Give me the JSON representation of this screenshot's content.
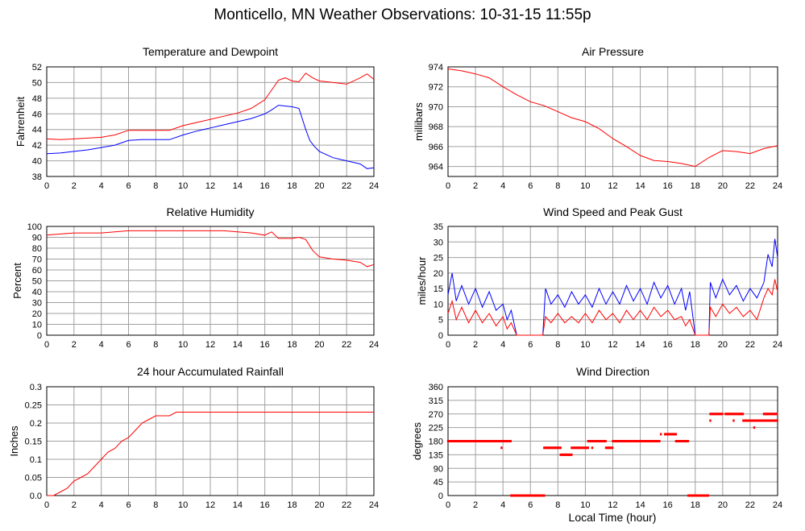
{
  "page": {
    "title": "Monticello, MN Weather Observations: 10-31-15 11:55p",
    "bottom_xlabel": "Local Time (hour)"
  },
  "chart_data": [
    {
      "type": "line",
      "title": "Temperature and Dewpoint",
      "ylabel": "Fahrenheit",
      "xlabel": "",
      "xlim": [
        0,
        24
      ],
      "ylim": [
        38,
        52
      ],
      "yticks": [
        38,
        40,
        42,
        44,
        46,
        48,
        50,
        52
      ],
      "xticks": [
        0,
        2,
        4,
        6,
        8,
        10,
        12,
        14,
        16,
        18,
        20,
        22,
        24
      ],
      "grid": true,
      "series": [
        {
          "color": "#ff0000",
          "x": [
            0,
            1,
            2,
            3,
            4,
            5,
            6,
            7,
            8,
            9,
            10,
            11,
            12,
            13,
            14,
            15,
            16,
            17,
            17.5,
            18,
            18.5,
            19,
            19.5,
            20,
            21,
            22,
            23,
            23.5,
            24
          ],
          "values": [
            42.8,
            42.7,
            42.8,
            42.9,
            43.0,
            43.3,
            43.9,
            43.9,
            43.9,
            43.9,
            44.5,
            44.9,
            45.3,
            45.7,
            46.1,
            46.7,
            47.8,
            50.3,
            50.6,
            50.2,
            50.1,
            51.2,
            50.6,
            50.2,
            50.0,
            49.8,
            50.6,
            51.1,
            50.4
          ]
        },
        {
          "color": "#0000ff",
          "x": [
            0,
            1,
            2,
            3,
            4,
            5,
            6,
            7,
            8,
            9,
            10,
            11,
            12,
            13,
            14,
            15,
            16,
            16.5,
            17,
            17.5,
            18,
            18.5,
            19,
            19.3,
            19.6,
            20,
            21,
            22,
            23,
            23.5,
            24
          ],
          "values": [
            40.9,
            41.0,
            41.2,
            41.4,
            41.7,
            42.0,
            42.6,
            42.7,
            42.7,
            42.7,
            43.3,
            43.8,
            44.2,
            44.6,
            45.0,
            45.4,
            46.0,
            46.5,
            47.1,
            47.0,
            46.9,
            46.7,
            44.0,
            42.6,
            41.9,
            41.2,
            40.4,
            40.0,
            39.6,
            39.0,
            39.1
          ]
        }
      ]
    },
    {
      "type": "line",
      "title": "Air Pressure",
      "ylabel": "millibars",
      "xlabel": "",
      "xlim": [
        0,
        24
      ],
      "ylim": [
        963,
        974
      ],
      "yticks": [
        964,
        966,
        968,
        970,
        972,
        974
      ],
      "xticks": [
        0,
        2,
        4,
        6,
        8,
        10,
        12,
        14,
        16,
        18,
        20,
        22,
        24
      ],
      "grid": true,
      "series": [
        {
          "color": "#ff0000",
          "x": [
            0,
            1,
            2,
            3,
            4,
            5,
            6,
            7,
            8,
            9,
            10,
            11,
            12,
            13,
            14,
            15,
            16,
            17,
            18,
            19,
            20,
            21,
            22,
            23,
            24
          ],
          "values": [
            973.8,
            973.6,
            973.3,
            972.9,
            972.0,
            971.2,
            970.5,
            970.1,
            969.5,
            968.9,
            968.5,
            967.8,
            966.8,
            966.0,
            965.1,
            964.6,
            964.5,
            964.3,
            964.0,
            964.9,
            965.6,
            965.5,
            965.3,
            965.8,
            966.1
          ]
        }
      ]
    },
    {
      "type": "line",
      "title": "Relative Humidity",
      "ylabel": "Percent",
      "xlabel": "",
      "xlim": [
        0,
        24
      ],
      "ylim": [
        0,
        100
      ],
      "yticks": [
        0,
        10,
        20,
        30,
        40,
        50,
        60,
        70,
        80,
        90,
        100
      ],
      "xticks": [
        0,
        2,
        4,
        6,
        8,
        10,
        12,
        14,
        16,
        18,
        20,
        22,
        24
      ],
      "grid": true,
      "series": [
        {
          "color": "#ff0000",
          "x": [
            0,
            1,
            2,
            3,
            4,
            5,
            6,
            7,
            8,
            9,
            10,
            11,
            12,
            13,
            14,
            15,
            16,
            16.5,
            17,
            18,
            18.5,
            19,
            19.5,
            20,
            21,
            22,
            23,
            23.5,
            24
          ],
          "values": [
            92,
            93,
            94,
            94,
            94,
            95,
            96,
            96,
            96,
            96,
            96,
            96,
            96,
            96,
            95,
            94,
            92,
            95,
            89,
            89,
            90,
            88,
            78,
            72,
            70,
            69,
            67,
            63,
            65
          ]
        }
      ]
    },
    {
      "type": "line",
      "title": "Wind Speed and Peak Gust",
      "ylabel": "miles/hour",
      "xlabel": "",
      "xlim": [
        0,
        24
      ],
      "ylim": [
        0,
        35
      ],
      "yticks": [
        0,
        5,
        10,
        15,
        20,
        25,
        30,
        35
      ],
      "xticks": [
        0,
        2,
        4,
        6,
        8,
        10,
        12,
        14,
        16,
        18,
        20,
        22,
        24
      ],
      "grid": true,
      "series": [
        {
          "color": "#0000ff",
          "x": [
            0,
            0.3,
            0.6,
            1,
            1.5,
            2,
            2.5,
            3,
            3.5,
            4,
            4.3,
            4.6,
            5,
            6,
            6.9,
            7.1,
            7.5,
            8,
            8.5,
            9,
            9.5,
            10,
            10.5,
            11,
            11.5,
            12,
            12.5,
            13,
            13.5,
            14,
            14.5,
            15,
            15.5,
            16,
            16.5,
            17,
            17.3,
            17.6,
            18,
            19,
            19.1,
            19.5,
            20,
            20.5,
            21,
            21.5,
            22,
            22.5,
            23,
            23.3,
            23.6,
            23.8,
            24
          ],
          "values": [
            13,
            20,
            11,
            16,
            10,
            15,
            9,
            14,
            8,
            10,
            5,
            8,
            0,
            0,
            0,
            15,
            10,
            13,
            9,
            14,
            10,
            13,
            9,
            15,
            10,
            14,
            10,
            16,
            11,
            15,
            10,
            17,
            12,
            16,
            10,
            15,
            8,
            14,
            0,
            0,
            17,
            12,
            18,
            13,
            16,
            11,
            15,
            12,
            17,
            26,
            22,
            31,
            25
          ]
        },
        {
          "color": "#ff0000",
          "x": [
            0,
            0.3,
            0.6,
            1,
            1.5,
            2,
            2.5,
            3,
            3.5,
            4,
            4.3,
            4.6,
            5,
            6,
            6.9,
            7.1,
            7.5,
            8,
            8.5,
            9,
            9.5,
            10,
            10.5,
            11,
            11.5,
            12,
            12.5,
            13,
            13.5,
            14,
            14.5,
            15,
            15.5,
            16,
            16.5,
            17,
            17.3,
            17.6,
            18,
            19,
            19.1,
            19.5,
            20,
            20.5,
            21,
            21.5,
            22,
            22.5,
            23,
            23.3,
            23.6,
            23.8,
            24
          ],
          "values": [
            7,
            11,
            5,
            9,
            4,
            8,
            4,
            7,
            3,
            6,
            2,
            4,
            0,
            0,
            0,
            6,
            4,
            7,
            4,
            6,
            4,
            7,
            4,
            8,
            5,
            7,
            4,
            8,
            5,
            8,
            5,
            9,
            6,
            8,
            5,
            6,
            3,
            5,
            0,
            0,
            9,
            6,
            10,
            7,
            9,
            6,
            8,
            5,
            12,
            15,
            13,
            18,
            14
          ]
        }
      ]
    },
    {
      "type": "line",
      "title": "24 hour Accumulated Rainfall",
      "ylabel": "Inches",
      "xlabel": "",
      "xlim": [
        0,
        24
      ],
      "ylim": [
        0,
        0.3
      ],
      "yticks": [
        0.0,
        0.05,
        0.1,
        0.15,
        0.2,
        0.25,
        0.3
      ],
      "ytick_labels": [
        "0.0",
        "0.05",
        "0.1",
        "0.15",
        "0.2",
        "0.25",
        "0.3"
      ],
      "xticks": [
        0,
        2,
        4,
        6,
        8,
        10,
        12,
        14,
        16,
        18,
        20,
        22,
        24
      ],
      "grid": true,
      "series": [
        {
          "color": "#ff0000",
          "x": [
            0,
            0.5,
            1,
            1.5,
            2,
            2.5,
            3,
            3.5,
            4,
            4.5,
            5,
            5.5,
            6,
            6.5,
            7,
            7.5,
            8,
            8.5,
            9,
            9.5,
            10,
            24
          ],
          "values": [
            0,
            0,
            0.01,
            0.02,
            0.04,
            0.05,
            0.06,
            0.08,
            0.1,
            0.12,
            0.13,
            0.15,
            0.16,
            0.18,
            0.2,
            0.21,
            0.22,
            0.22,
            0.22,
            0.23,
            0.23,
            0.23
          ]
        }
      ]
    },
    {
      "type": "scatter",
      "title": "Wind Direction",
      "ylabel": "degrees",
      "xlabel": "Local Time (hour)",
      "xlim": [
        0,
        24
      ],
      "ylim": [
        0,
        360
      ],
      "yticks": [
        0,
        45,
        90,
        135,
        180,
        225,
        270,
        315,
        360
      ],
      "xticks": [
        0,
        2,
        4,
        6,
        8,
        10,
        12,
        14,
        16,
        18,
        20,
        22,
        24
      ],
      "grid": true,
      "series": [
        {
          "color": "#ff0000",
          "segments": [
            {
              "x0": 0.0,
              "x1": 4.6,
              "y": 180
            },
            {
              "x0": 4.6,
              "x1": 7.0,
              "y": 0
            },
            {
              "x0": 7.0,
              "x1": 8.2,
              "y": 158
            },
            {
              "x0": 8.2,
              "x1": 9.0,
              "y": 135
            },
            {
              "x0": 9.0,
              "x1": 10.2,
              "y": 158
            },
            {
              "x0": 10.2,
              "x1": 11.5,
              "y": 180
            },
            {
              "x0": 11.5,
              "x1": 12.0,
              "y": 158
            },
            {
              "x0": 12.0,
              "x1": 15.0,
              "y": 180
            },
            {
              "x0": 15.0,
              "x1": 15.4,
              "y": 180
            },
            {
              "x0": 15.8,
              "x1": 16.6,
              "y": 203
            },
            {
              "x0": 16.6,
              "x1": 17.5,
              "y": 180
            },
            {
              "x0": 17.5,
              "x1": 19.0,
              "y": 0
            },
            {
              "x0": 19.1,
              "x1": 20.0,
              "y": 270
            },
            {
              "x0": 20.2,
              "x1": 21.5,
              "y": 270
            },
            {
              "x0": 21.5,
              "x1": 24.0,
              "y": 248
            },
            {
              "x0": 23.0,
              "x1": 24.0,
              "y": 270
            }
          ],
          "points": [
            [
              3.9,
              158
            ],
            [
              15.5,
              203
            ],
            [
              22.3,
              225
            ],
            [
              19.1,
              248
            ],
            [
              20.8,
              248
            ],
            [
              14.8,
              180
            ],
            [
              10.5,
              158
            ],
            [
              12.2,
              180
            ]
          ]
        }
      ]
    }
  ]
}
